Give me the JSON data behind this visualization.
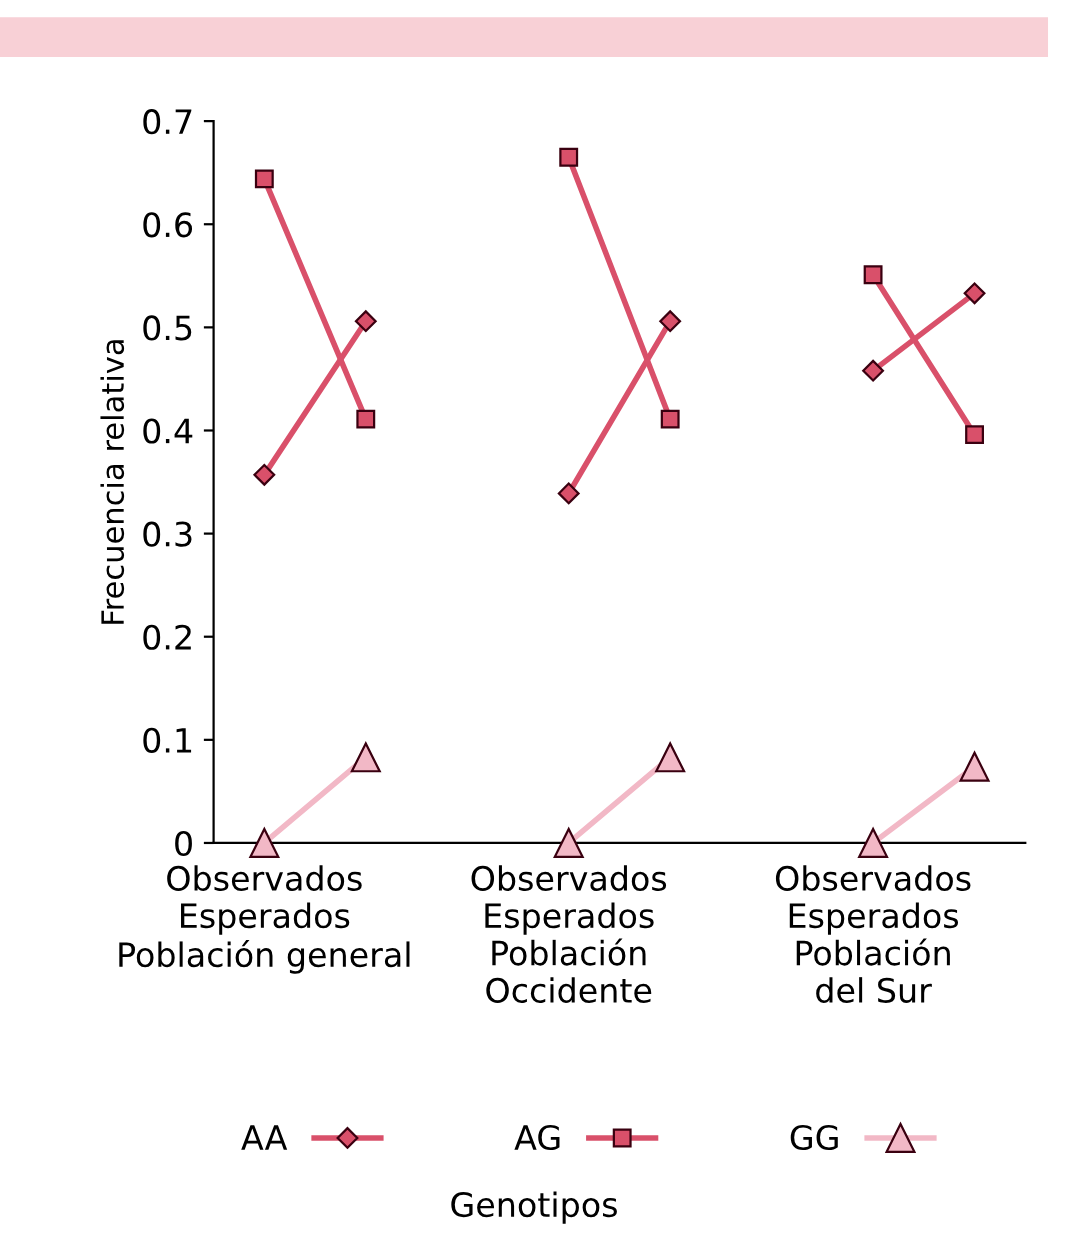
{
  "chart_data": {
    "type": "line",
    "ylabel": "Frecuencia relativa",
    "legend_title": "Genotipos",
    "categories": [
      "Observados\nEsperados\nPoblación general",
      null,
      null,
      "Observados\nEsperados\nPoblación\nOccidente",
      null,
      null,
      "Observados\nEsperados\nPoblación\ndel Sur",
      null
    ],
    "series": [
      {
        "name": "AA",
        "color": "#d9506a",
        "marker": "diamond",
        "values": [
          0.357,
          0.506,
          null,
          0.339,
          0.506,
          null,
          0.458,
          0.533
        ]
      },
      {
        "name": "AG",
        "color": "#d9506a",
        "marker": "square",
        "values": [
          0.644,
          0.411,
          null,
          0.665,
          0.411,
          null,
          0.551,
          0.396
        ]
      },
      {
        "name": "GG",
        "color": "#f2b8c6",
        "marker": "triangle",
        "values": [
          0,
          0.083,
          null,
          0,
          0.083,
          null,
          0,
          0.074
        ]
      }
    ],
    "ylim": [
      0,
      0.7
    ],
    "yticks": [
      0,
      0.1,
      0.2,
      0.3,
      0.4,
      0.5,
      0.6,
      0.7
    ],
    "grid": false,
    "legend": "bottom"
  }
}
